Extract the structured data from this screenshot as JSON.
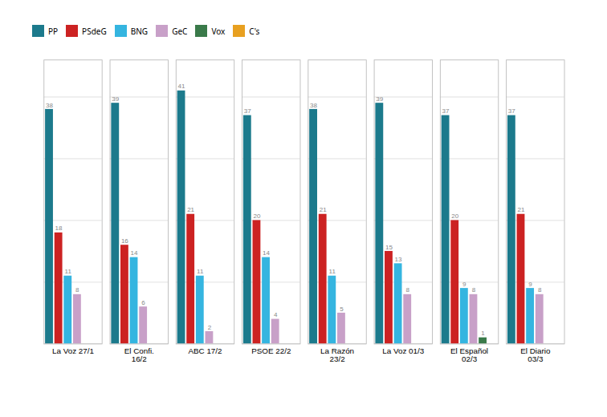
{
  "chart_data": {
    "type": "bar",
    "categories": [
      "La Voz 27/1",
      "El Confi.\n16/2",
      "ABC 17/2",
      "PSOE 22/2",
      "La Razón\n23/2",
      "La Voz 01/3",
      "El Español\n02/3",
      "El Diario\n03/3"
    ],
    "series": [
      {
        "name": "PP",
        "color": "#1c7a8c",
        "values": [
          38,
          39,
          41,
          37,
          38,
          39,
          37,
          37
        ]
      },
      {
        "name": "PSdeG",
        "color": "#cc2222",
        "values": [
          18,
          16,
          21,
          20,
          21,
          15,
          20,
          21
        ]
      },
      {
        "name": "BNG",
        "color": "#35b5e0",
        "values": [
          11,
          14,
          11,
          14,
          11,
          13,
          9,
          9
        ]
      },
      {
        "name": "GeC",
        "color": "#c8a0c8",
        "values": [
          8,
          6,
          2,
          4,
          5,
          8,
          8,
          8
        ]
      },
      {
        "name": "Vox",
        "color": "#3a7a4a",
        "values": [
          0,
          0,
          0,
          0,
          0,
          0,
          1,
          0
        ],
        "value_labels": [
          null,
          null,
          null,
          null,
          null,
          null,
          "1",
          null
        ]
      },
      {
        "name": "C's",
        "color": "#e8a020",
        "values": [
          0,
          0,
          0,
          0,
          0,
          0,
          0,
          0
        ],
        "value_labels": [
          null,
          null,
          null,
          null,
          null,
          null,
          null,
          null
        ]
      }
    ],
    "ylim": [
      0,
      46
    ],
    "yticks": [
      0,
      10,
      20,
      30,
      40
    ],
    "grid": true,
    "legend": "upper left",
    "data_labels": true,
    "tick_labels": "x"
  }
}
